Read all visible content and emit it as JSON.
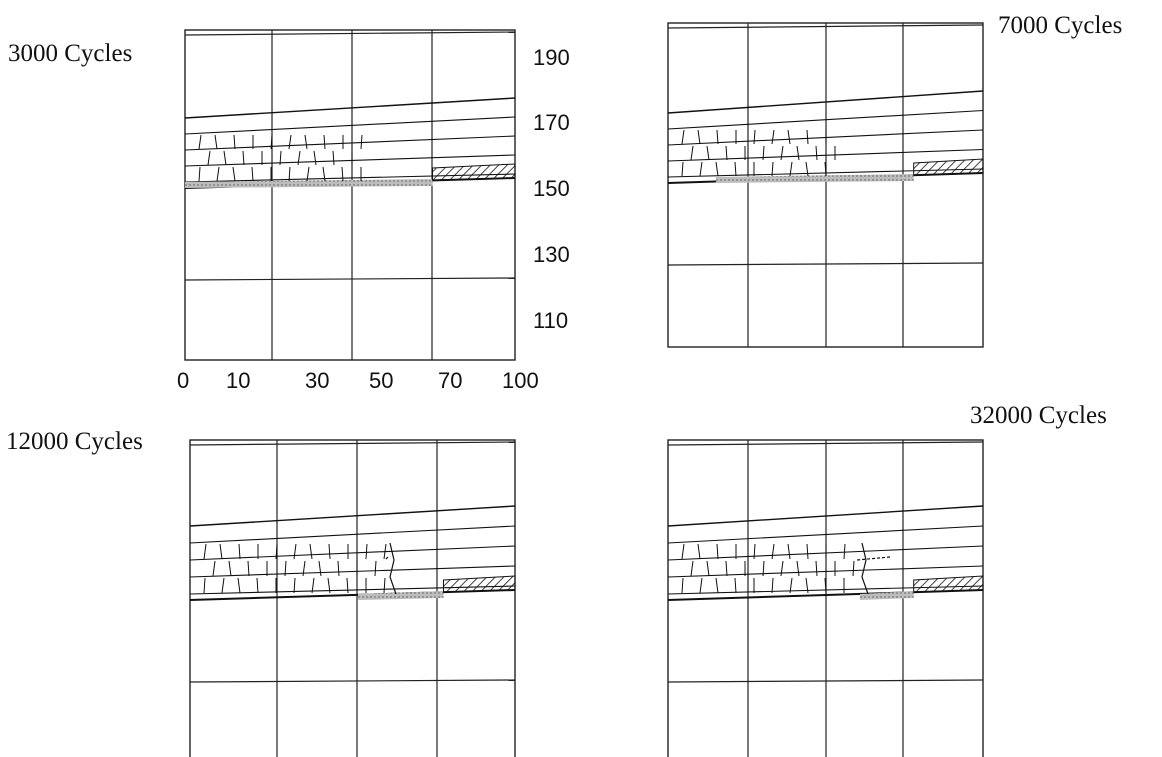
{
  "panels": [
    {
      "id": "p1",
      "title": "3000 Cycles",
      "stage": 1
    },
    {
      "id": "p2",
      "title": "7000 Cycles",
      "stage": 2
    },
    {
      "id": "p3",
      "title": "12000 Cycles",
      "stage": 3
    },
    {
      "id": "p4",
      "title": "32000 Cycles",
      "stage": 4
    }
  ],
  "axes": {
    "x_ticks": [
      "0",
      "10",
      "30",
      "50",
      "70",
      "100"
    ],
    "y_ticks": [
      "190",
      "170",
      "150",
      "130",
      "110"
    ]
  },
  "colors": {
    "line": "#111111",
    "grid": "#222222",
    "damage_fill": "#bdbdbd",
    "background": "#ffffff"
  }
}
